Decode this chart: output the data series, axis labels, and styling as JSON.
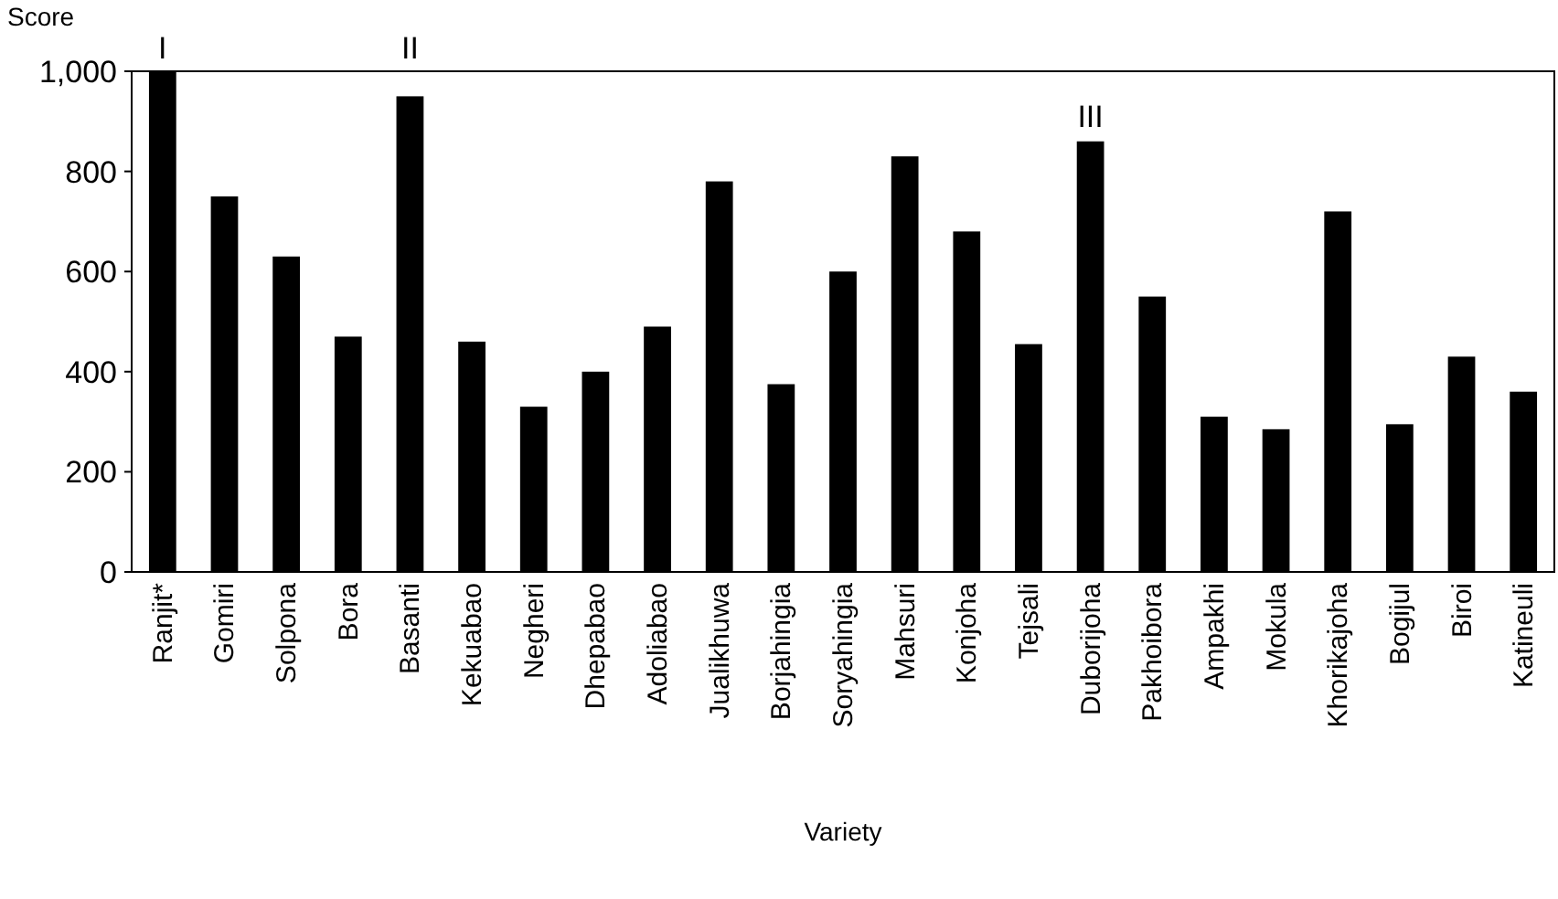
{
  "chart_data": {
    "type": "bar",
    "xlabel": "Variety",
    "ylabel": "Score",
    "categories": [
      "Ranjit*",
      "Gomiri",
      "Solpona",
      "Bora",
      "Basanti",
      "Kekuabao",
      "Negheri",
      "Dhepabao",
      "Adoliabao",
      "Jualikhuwa",
      "Borjahingia",
      "Soryahingia",
      "Mahsuri",
      "Konjoha",
      "Tejsali",
      "Duborijoha",
      "Pakhoibora",
      "Ampakhi",
      "Mokula",
      "Khorikajoha",
      "Bogijul",
      "Biroi",
      "Katineuli"
    ],
    "values": [
      1000,
      750,
      630,
      470,
      950,
      460,
      330,
      400,
      490,
      780,
      375,
      600,
      830,
      680,
      455,
      860,
      550,
      310,
      285,
      720,
      295,
      430,
      360
    ],
    "color": "#000000",
    "ylim": [
      0,
      1000
    ],
    "yticks": [
      0,
      200,
      400,
      600,
      800,
      {
        "value": 1000,
        "label": "1,000"
      }
    ],
    "annotations": [
      {
        "text": "I",
        "x": "Ranjit*",
        "y": 1000
      },
      {
        "text": "II",
        "x": "Basanti",
        "y": 950
      },
      {
        "text": "III",
        "x": "Duborijoha",
        "y": 860
      }
    ]
  }
}
